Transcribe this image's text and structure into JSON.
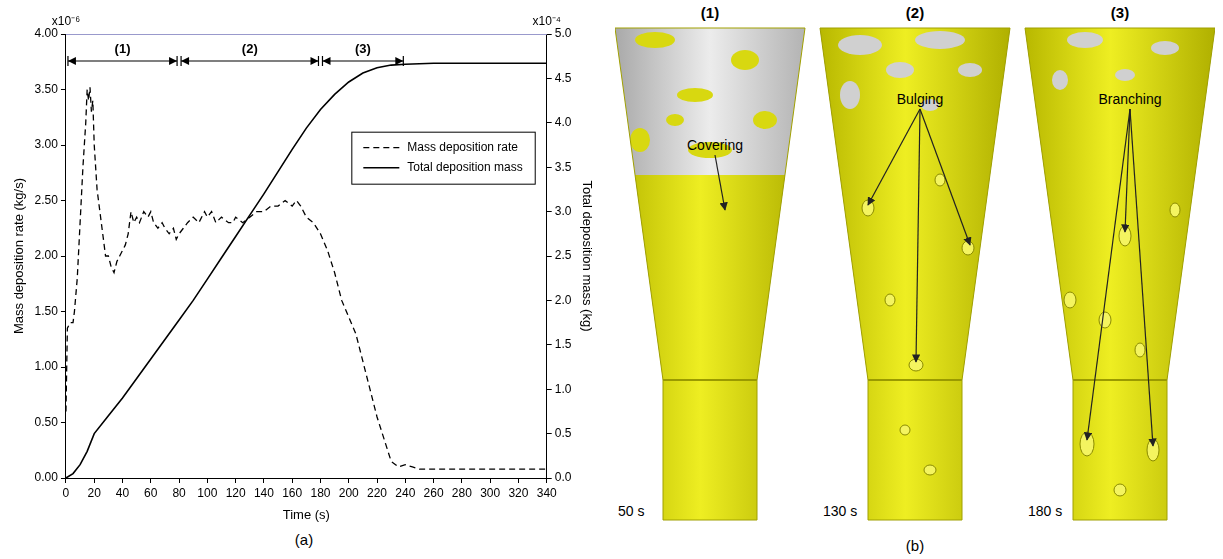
{
  "chart_data": {
    "type": "line",
    "panel_label": "(a)",
    "x_label": "Time (s)",
    "y_label": "Mass deposition rate (kg/s)",
    "y2_label": "Total deposition mass (kg)",
    "y_exponent_label": "x10⁻⁶",
    "y2_exponent_label": "x10⁻⁴",
    "xlim": [
      0,
      340
    ],
    "xticks": [
      0,
      20,
      40,
      60,
      80,
      100,
      120,
      140,
      160,
      180,
      200,
      220,
      240,
      260,
      280,
      300,
      320,
      340
    ],
    "ylim": [
      0,
      4
    ],
    "yticks": [
      {
        "value": 0,
        "label": "0.00"
      },
      {
        "value": 0.5,
        "label": "0.50"
      },
      {
        "value": 1,
        "label": "1.00"
      },
      {
        "value": 1.5,
        "label": "1.50"
      },
      {
        "value": 2,
        "label": "2.00"
      },
      {
        "value": 2.5,
        "label": "2.50"
      },
      {
        "value": 3,
        "label": "3.00"
      },
      {
        "value": 3.5,
        "label": "3.50"
      },
      {
        "value": 4,
        "label": "4.00"
      }
    ],
    "y2lim": [
      0,
      5
    ],
    "y2ticks": [
      {
        "value": 0,
        "label": "0.0"
      },
      0.5,
      {
        "value": 1,
        "label": "1.0"
      },
      1.5,
      {
        "value": 2,
        "label": "2.0"
      },
      2.5,
      {
        "value": 3,
        "label": "3.0"
      },
      3.5,
      {
        "value": 4,
        "label": "4.0"
      },
      4.5,
      {
        "value": 5,
        "label": "5.0"
      }
    ],
    "grid": false,
    "legend": "right",
    "phases": [
      {
        "label": "(1)",
        "start": 0,
        "end": 80
      },
      {
        "label": "(2)",
        "start": 80,
        "end": 180
      },
      {
        "label": "(3)",
        "start": 180,
        "end": 240
      }
    ],
    "series": [
      {
        "name": "Mass deposition rate",
        "color": "#000000",
        "line_style": "dashed",
        "x": [
          0,
          1,
          3,
          5,
          6,
          8,
          10,
          12,
          14,
          15,
          16,
          17,
          18,
          19,
          20,
          22,
          24,
          26,
          28,
          30,
          32,
          34,
          36,
          38,
          40,
          42,
          44,
          46,
          48,
          50,
          52,
          55,
          58,
          60,
          62,
          65,
          68,
          70,
          73,
          76,
          78,
          80,
          83,
          86,
          90,
          94,
          98,
          100,
          103,
          106,
          110,
          115,
          118,
          120,
          125,
          130,
          135,
          140,
          145,
          150,
          155,
          160,
          163,
          166,
          170,
          175,
          180,
          185,
          190,
          195,
          200,
          205,
          210,
          215,
          220,
          225,
          230,
          235,
          240,
          245,
          250,
          260,
          280,
          300,
          320,
          340
        ],
        "values": [
          0.6,
          1.35,
          1.4,
          1.4,
          1.5,
          1.8,
          2.3,
          2.8,
          3.2,
          3.5,
          3.4,
          3.52,
          3.3,
          3.4,
          3,
          2.6,
          2.4,
          2.2,
          2,
          2,
          1.9,
          1.85,
          1.95,
          2,
          2.05,
          2.1,
          2.2,
          2.4,
          2.3,
          2.35,
          2.3,
          2.4,
          2.35,
          2.4,
          2.3,
          2.25,
          2.3,
          2.25,
          2.2,
          2.25,
          2.15,
          2.2,
          2.25,
          2.3,
          2.35,
          2.3,
          2.4,
          2.35,
          2.4,
          2.3,
          2.35,
          2.3,
          2.3,
          2.35,
          2.3,
          2.35,
          2.4,
          2.4,
          2.45,
          2.45,
          2.5,
          2.45,
          2.5,
          2.45,
          2.35,
          2.3,
          2.2,
          2.05,
          1.85,
          1.6,
          1.45,
          1.3,
          1.05,
          0.8,
          0.55,
          0.35,
          0.15,
          0.1,
          0.12,
          0.1,
          0.08,
          0.08,
          0.08,
          0.08,
          0.08,
          0.08
        ]
      },
      {
        "name": "Total deposition mass",
        "color": "#000000",
        "line_style": "solid",
        "axis": "y2",
        "x": [
          0,
          5,
          10,
          15,
          20,
          30,
          40,
          50,
          60,
          70,
          80,
          90,
          100,
          110,
          120,
          130,
          140,
          150,
          160,
          170,
          180,
          190,
          200,
          210,
          220,
          230,
          240,
          260,
          280,
          300,
          320,
          340
        ],
        "values": [
          0,
          0.05,
          0.15,
          0.3,
          0.5,
          0.7,
          0.9,
          1.12,
          1.34,
          1.56,
          1.78,
          2,
          2.24,
          2.48,
          2.72,
          2.96,
          3.2,
          3.45,
          3.7,
          3.94,
          4.15,
          4.32,
          4.46,
          4.56,
          4.62,
          4.65,
          4.66,
          4.67,
          4.67,
          4.67,
          4.67,
          4.67
        ]
      }
    ]
  },
  "figure_b": {
    "panel_label": "(b)",
    "views": [
      {
        "header": "(1)",
        "annotation": "Covering",
        "time": "50 s"
      },
      {
        "header": "(2)",
        "annotation": "Bulging",
        "time": "130 s"
      },
      {
        "header": "(3)",
        "annotation": "Branching",
        "time": "180 s"
      }
    ]
  }
}
